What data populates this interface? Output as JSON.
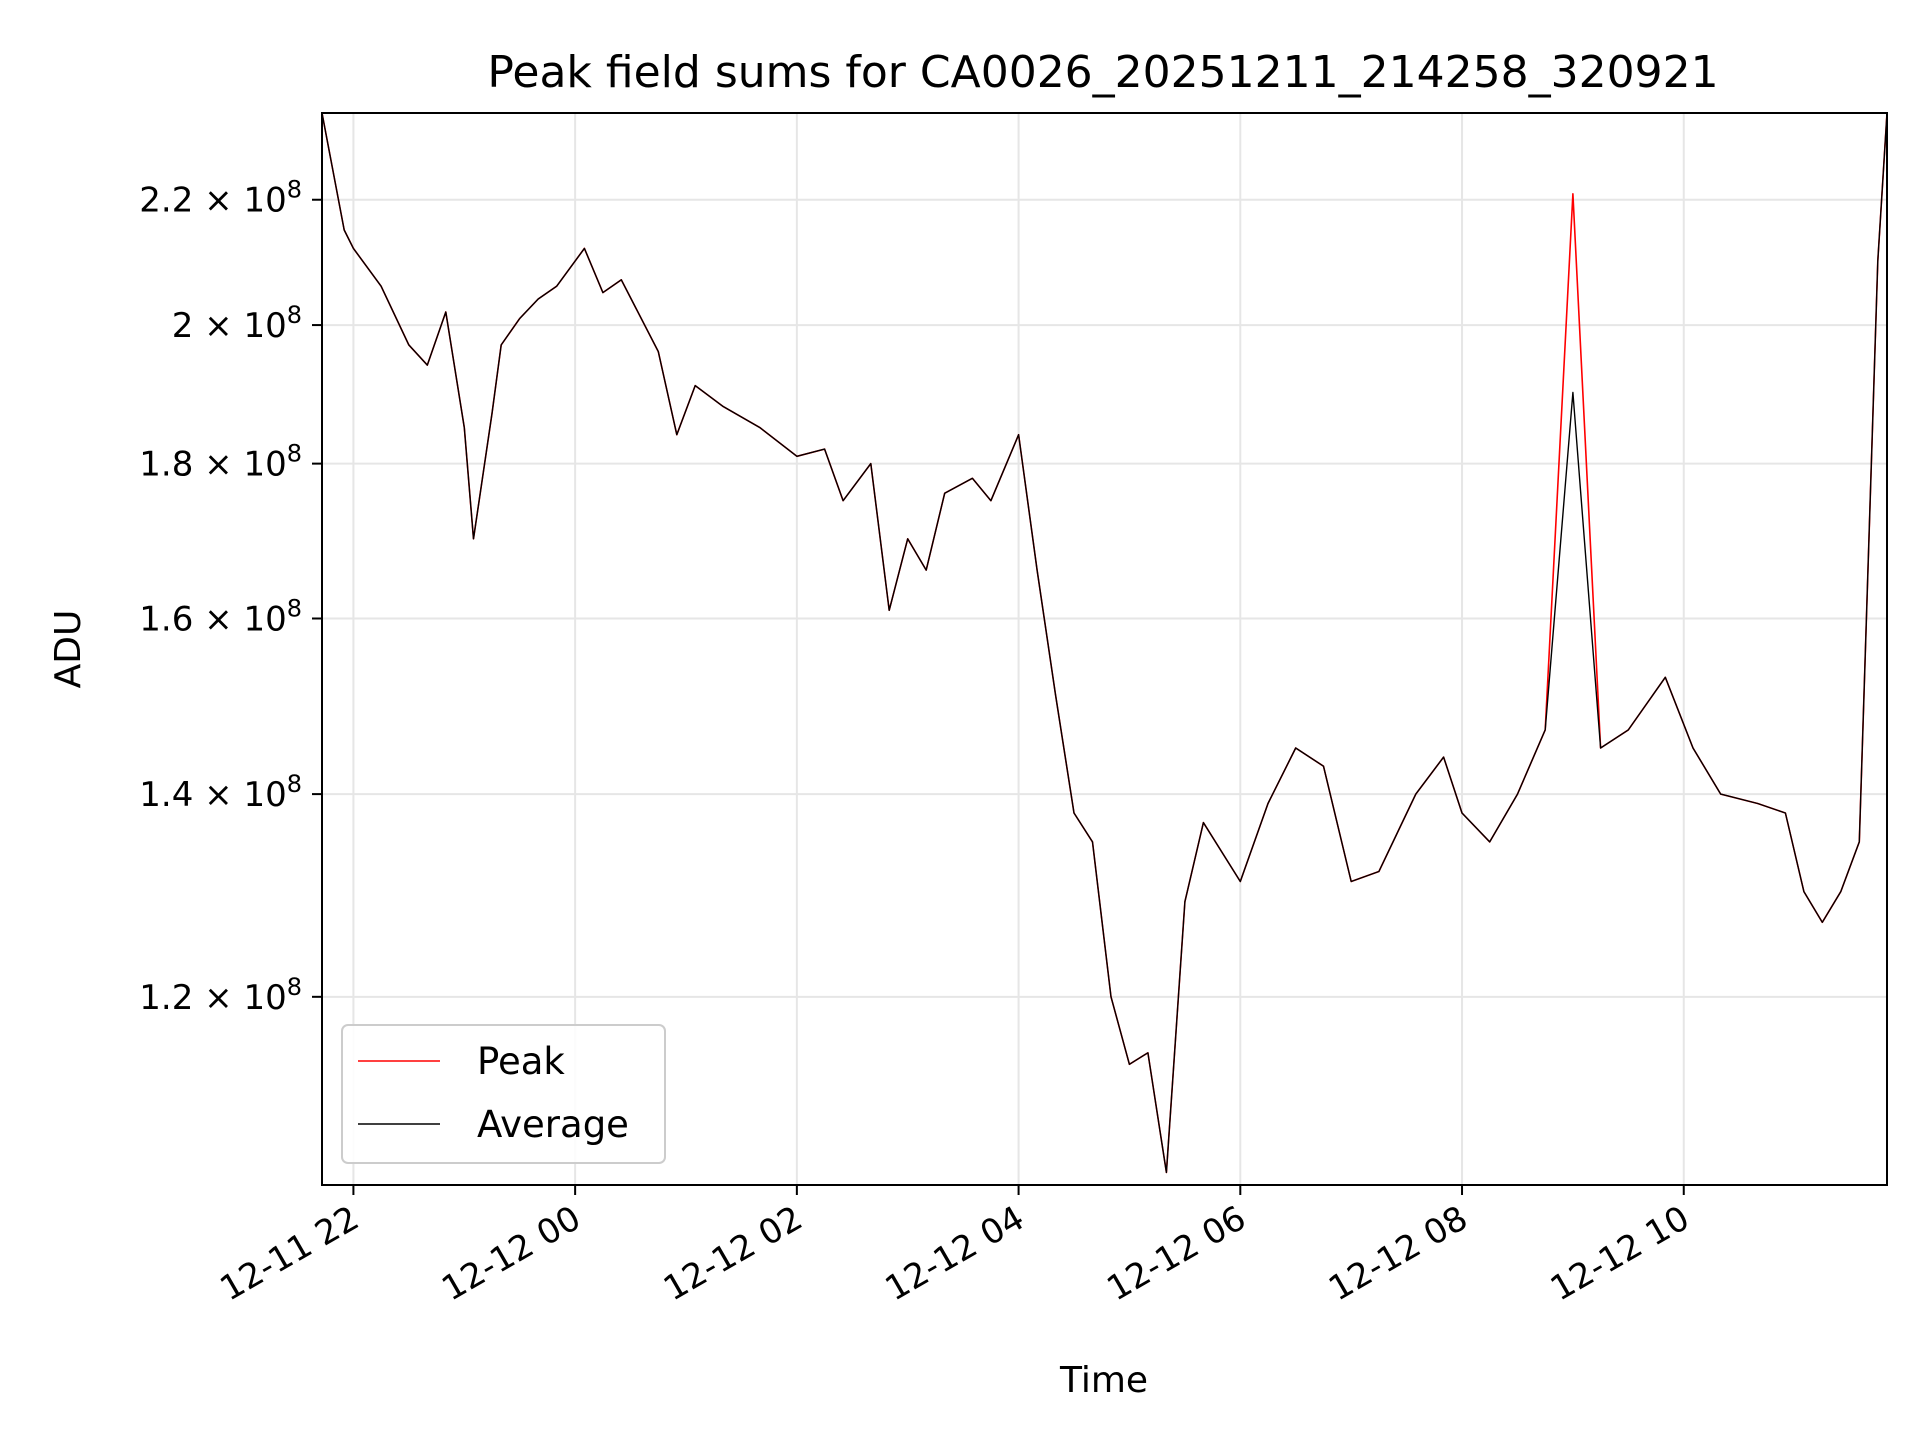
{
  "chart_data": {
    "type": "line",
    "title": "Peak field sums for CA0026_20251211_214258_320921",
    "xlabel": "Time",
    "ylabel": "ADU",
    "yscale": "log",
    "grid": true,
    "legend_position": "lower-left",
    "xlim": [
      "2025-12-11 21:43",
      "2025-12-12 11:50"
    ],
    "ylim": [
      104000000.0,
      235000000.0
    ],
    "x_ticks": [
      {
        "value": "2025-12-11 22:00",
        "label": "12-11 22"
      },
      {
        "value": "2025-12-12 00:00",
        "label": "12-12 00"
      },
      {
        "value": "2025-12-12 02:00",
        "label": "12-12 02"
      },
      {
        "value": "2025-12-12 04:00",
        "label": "12-12 04"
      },
      {
        "value": "2025-12-12 06:00",
        "label": "12-12 06"
      },
      {
        "value": "2025-12-12 08:00",
        "label": "12-12 08"
      },
      {
        "value": "2025-12-12 10:00",
        "label": "12-12 10"
      }
    ],
    "y_ticks": [
      {
        "value": 120000000,
        "mantissa": "1.2",
        "exponent": "8"
      },
      {
        "value": 140000000,
        "mantissa": "1.4",
        "exponent": "8"
      },
      {
        "value": 160000000,
        "mantissa": "1.6",
        "exponent": "8"
      },
      {
        "value": 180000000,
        "mantissa": "1.8",
        "exponent": "8"
      },
      {
        "value": 200000000,
        "mantissa": "2",
        "exponent": "8"
      },
      {
        "value": 220000000,
        "mantissa": "2.2",
        "exponent": "8"
      }
    ],
    "x": [
      "2025-12-11 21:43",
      "2025-12-11 21:55",
      "2025-12-11 22:00",
      "2025-12-11 22:15",
      "2025-12-11 22:30",
      "2025-12-11 22:40",
      "2025-12-11 22:50",
      "2025-12-11 23:00",
      "2025-12-11 23:05",
      "2025-12-11 23:15",
      "2025-12-11 23:20",
      "2025-12-11 23:30",
      "2025-12-11 23:40",
      "2025-12-11 23:50",
      "2025-12-12 00:05",
      "2025-12-12 00:15",
      "2025-12-12 00:25",
      "2025-12-12 00:45",
      "2025-12-12 00:55",
      "2025-12-12 01:05",
      "2025-12-12 01:20",
      "2025-12-12 01:40",
      "2025-12-12 02:00",
      "2025-12-12 02:15",
      "2025-12-12 02:25",
      "2025-12-12 02:40",
      "2025-12-12 02:50",
      "2025-12-12 03:00",
      "2025-12-12 03:10",
      "2025-12-12 03:20",
      "2025-12-12 03:35",
      "2025-12-12 03:45",
      "2025-12-12 04:00",
      "2025-12-12 04:10",
      "2025-12-12 04:20",
      "2025-12-12 04:30",
      "2025-12-12 04:40",
      "2025-12-12 04:50",
      "2025-12-12 05:00",
      "2025-12-12 05:10",
      "2025-12-12 05:20",
      "2025-12-12 05:30",
      "2025-12-12 05:40",
      "2025-12-12 06:00",
      "2025-12-12 06:15",
      "2025-12-12 06:30",
      "2025-12-12 06:45",
      "2025-12-12 07:00",
      "2025-12-12 07:15",
      "2025-12-12 07:35",
      "2025-12-12 07:50",
      "2025-12-12 08:00",
      "2025-12-12 08:15",
      "2025-12-12 08:30",
      "2025-12-12 08:45",
      "2025-12-12 09:00",
      "2025-12-12 09:15",
      "2025-12-12 09:30",
      "2025-12-12 09:50",
      "2025-12-12 10:05",
      "2025-12-12 10:20",
      "2025-12-12 10:40",
      "2025-12-12 10:55",
      "2025-12-12 11:05",
      "2025-12-12 11:15",
      "2025-12-12 11:25",
      "2025-12-12 11:35",
      "2025-12-12 11:45",
      "2025-12-12 11:50"
    ],
    "series": [
      {
        "name": "Peak",
        "color": "#ff0000",
        "values": [
          235000000.0,
          215000000.0,
          212000000.0,
          206000000.0,
          197000000.0,
          194000000.0,
          202000000.0,
          185000000.0,
          170000000.0,
          187000000.0,
          197000000.0,
          201000000.0,
          204000000.0,
          206000000.0,
          212000000.0,
          205000000.0,
          207000000.0,
          196000000.0,
          184000000.0,
          191000000.0,
          188000000.0,
          185000000.0,
          181000000.0,
          182000000.0,
          175000000.0,
          180000000.0,
          161000000.0,
          170000000.0,
          166000000.0,
          176000000.0,
          178000000.0,
          175000000.0,
          184000000.0,
          166000000.0,
          151000000.0,
          138000000.0,
          135000000.0,
          120000000.0,
          114000000.0,
          115000000.0,
          105000000.0,
          129000000.0,
          137000000.0,
          131000000.0,
          139000000.0,
          145000000.0,
          143000000.0,
          131000000.0,
          132000000.0,
          140000000.0,
          144000000.0,
          138000000.0,
          135000000.0,
          140000000.0,
          147000000.0,
          221000000.0,
          145000000.0,
          147000000.0,
          153000000.0,
          145000000.0,
          140000000.0,
          139000000.0,
          138000000.0,
          130000000.0,
          127000000.0,
          130000000.0,
          135000000.0,
          210000000.0,
          235000000.0
        ]
      },
      {
        "name": "Average",
        "color": "#000000",
        "values": [
          235000000.0,
          215000000.0,
          212000000.0,
          206000000.0,
          197000000.0,
          194000000.0,
          202000000.0,
          185000000.0,
          170000000.0,
          187000000.0,
          197000000.0,
          201000000.0,
          204000000.0,
          206000000.0,
          212000000.0,
          205000000.0,
          207000000.0,
          196000000.0,
          184000000.0,
          191000000.0,
          188000000.0,
          185000000.0,
          181000000.0,
          182000000.0,
          175000000.0,
          180000000.0,
          161000000.0,
          170000000.0,
          166000000.0,
          176000000.0,
          178000000.0,
          175000000.0,
          184000000.0,
          166000000.0,
          151000000.0,
          138000000.0,
          135000000.0,
          120000000.0,
          114000000.0,
          115000000.0,
          105000000.0,
          129000000.0,
          137000000.0,
          131000000.0,
          139000000.0,
          145000000.0,
          143000000.0,
          131000000.0,
          132000000.0,
          140000000.0,
          144000000.0,
          138000000.0,
          135000000.0,
          140000000.0,
          147000000.0,
          190000000.0,
          145000000.0,
          147000000.0,
          153000000.0,
          145000000.0,
          140000000.0,
          139000000.0,
          138000000.0,
          130000000.0,
          127000000.0,
          130000000.0,
          135000000.0,
          210000000.0,
          235000000.0
        ]
      }
    ]
  }
}
